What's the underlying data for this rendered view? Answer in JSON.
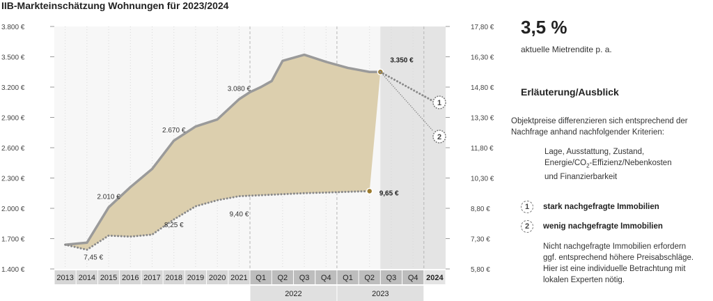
{
  "title": "IIB-Markteinschätzung Wohnungen für 2023/2024",
  "side": {
    "rate_value": "3,5 %",
    "rate_label": "aktuelle Mietrendite p. a.",
    "heading": "Erläuterung/Ausblick",
    "paragraph_line1": "Objektpreise differenzieren sich entsprechend der",
    "paragraph_line2": "Nachfrage anhand nachfolgender Kriterien:",
    "criteria_line1": "Lage, Ausstattung, Zustand,",
    "criteria_line2a": "Energie/CO",
    "criteria_line2_sub": "2",
    "criteria_line2b": "-Effizienz/Nebenkosten",
    "criteria_line3": "und Finanzierbarkeit",
    "legend": [
      {
        "num": "1",
        "label": "stark nachgefragte Immobilien"
      },
      {
        "num": "2",
        "label": "wenig nachgefragte Immobilien"
      }
    ],
    "note_lines": [
      "Nicht nachgefragte Immobilien erfordern",
      "ggf. entsprechend höhere Preisabschläge.",
      "Hier ist eine individuelle Betrachtung mit",
      "lokalen Experten nötig."
    ]
  },
  "chart_data": {
    "type": "area",
    "categories": [
      "2013",
      "2014",
      "2015",
      "2016",
      "2017",
      "2018",
      "2019",
      "2020",
      "2021",
      "Q1",
      "Q2",
      "Q3",
      "Q4",
      "Q1",
      "Q2",
      "Q3",
      "Q4",
      "2024"
    ],
    "year_groups": [
      {
        "label": "2022",
        "from": 9,
        "to": 12
      },
      {
        "label": "2023",
        "from": 13,
        "to": 16
      }
    ],
    "y_left": {
      "min": 1400,
      "max": 3800,
      "ticks": [
        "1.400 €",
        "1.700 €",
        "2.000 €",
        "2.300 €",
        "2.600 €",
        "2.900 €",
        "3.200 €",
        "3.500 €",
        "3.800 €"
      ]
    },
    "y_right": {
      "min": 5.8,
      "max": 17.8,
      "ticks": [
        "5,80 €",
        "7,30 €",
        "8,80 €",
        "10,30 €",
        "11,80 €",
        "13,30 €",
        "14,80 €",
        "16,30 €",
        "17,80 €"
      ]
    },
    "series": [
      {
        "axis": "left",
        "style": "solid",
        "x": [
          0,
          1,
          2,
          3,
          4,
          5,
          6,
          7,
          8,
          8.5,
          9,
          9.5,
          10,
          11,
          12,
          13,
          14,
          14.5
        ],
        "y": [
          1640,
          1660,
          2010,
          2210,
          2390,
          2670,
          2810,
          2880,
          3080,
          3150,
          3200,
          3260,
          3460,
          3520,
          3450,
          3390,
          3350,
          3350
        ]
      },
      {
        "axis": "right",
        "style": "dotted",
        "x": [
          0,
          1,
          2,
          3,
          4,
          5,
          6,
          7,
          8,
          9,
          10,
          11,
          12,
          13,
          14
        ],
        "y": [
          7.0,
          6.75,
          7.45,
          7.4,
          7.5,
          8.25,
          8.9,
          9.2,
          9.4,
          9.45,
          9.5,
          9.55,
          9.58,
          9.62,
          9.65
        ]
      }
    ],
    "labels": [
      {
        "x": 1.3,
        "y": 1520,
        "axis": "left",
        "text": "7,45 €"
      },
      {
        "x": 2,
        "y": 2010,
        "axis": "left",
        "text": "2.010 €",
        "above": true
      },
      {
        "x": 5,
        "y": 2670,
        "axis": "left",
        "text": "2.670 €",
        "above": true
      },
      {
        "x": 5,
        "y": 1840,
        "axis": "left",
        "text": "8,25 €"
      },
      {
        "x": 8,
        "y": 3080,
        "axis": "left",
        "text": "3.080 €",
        "above": true
      },
      {
        "x": 8,
        "y": 1950,
        "axis": "left",
        "text": "9,40 €"
      }
    ],
    "end_labels": {
      "upper": "3.350 €",
      "lower": "9,65 €"
    },
    "forecast_markers": [
      "1",
      "2"
    ]
  }
}
